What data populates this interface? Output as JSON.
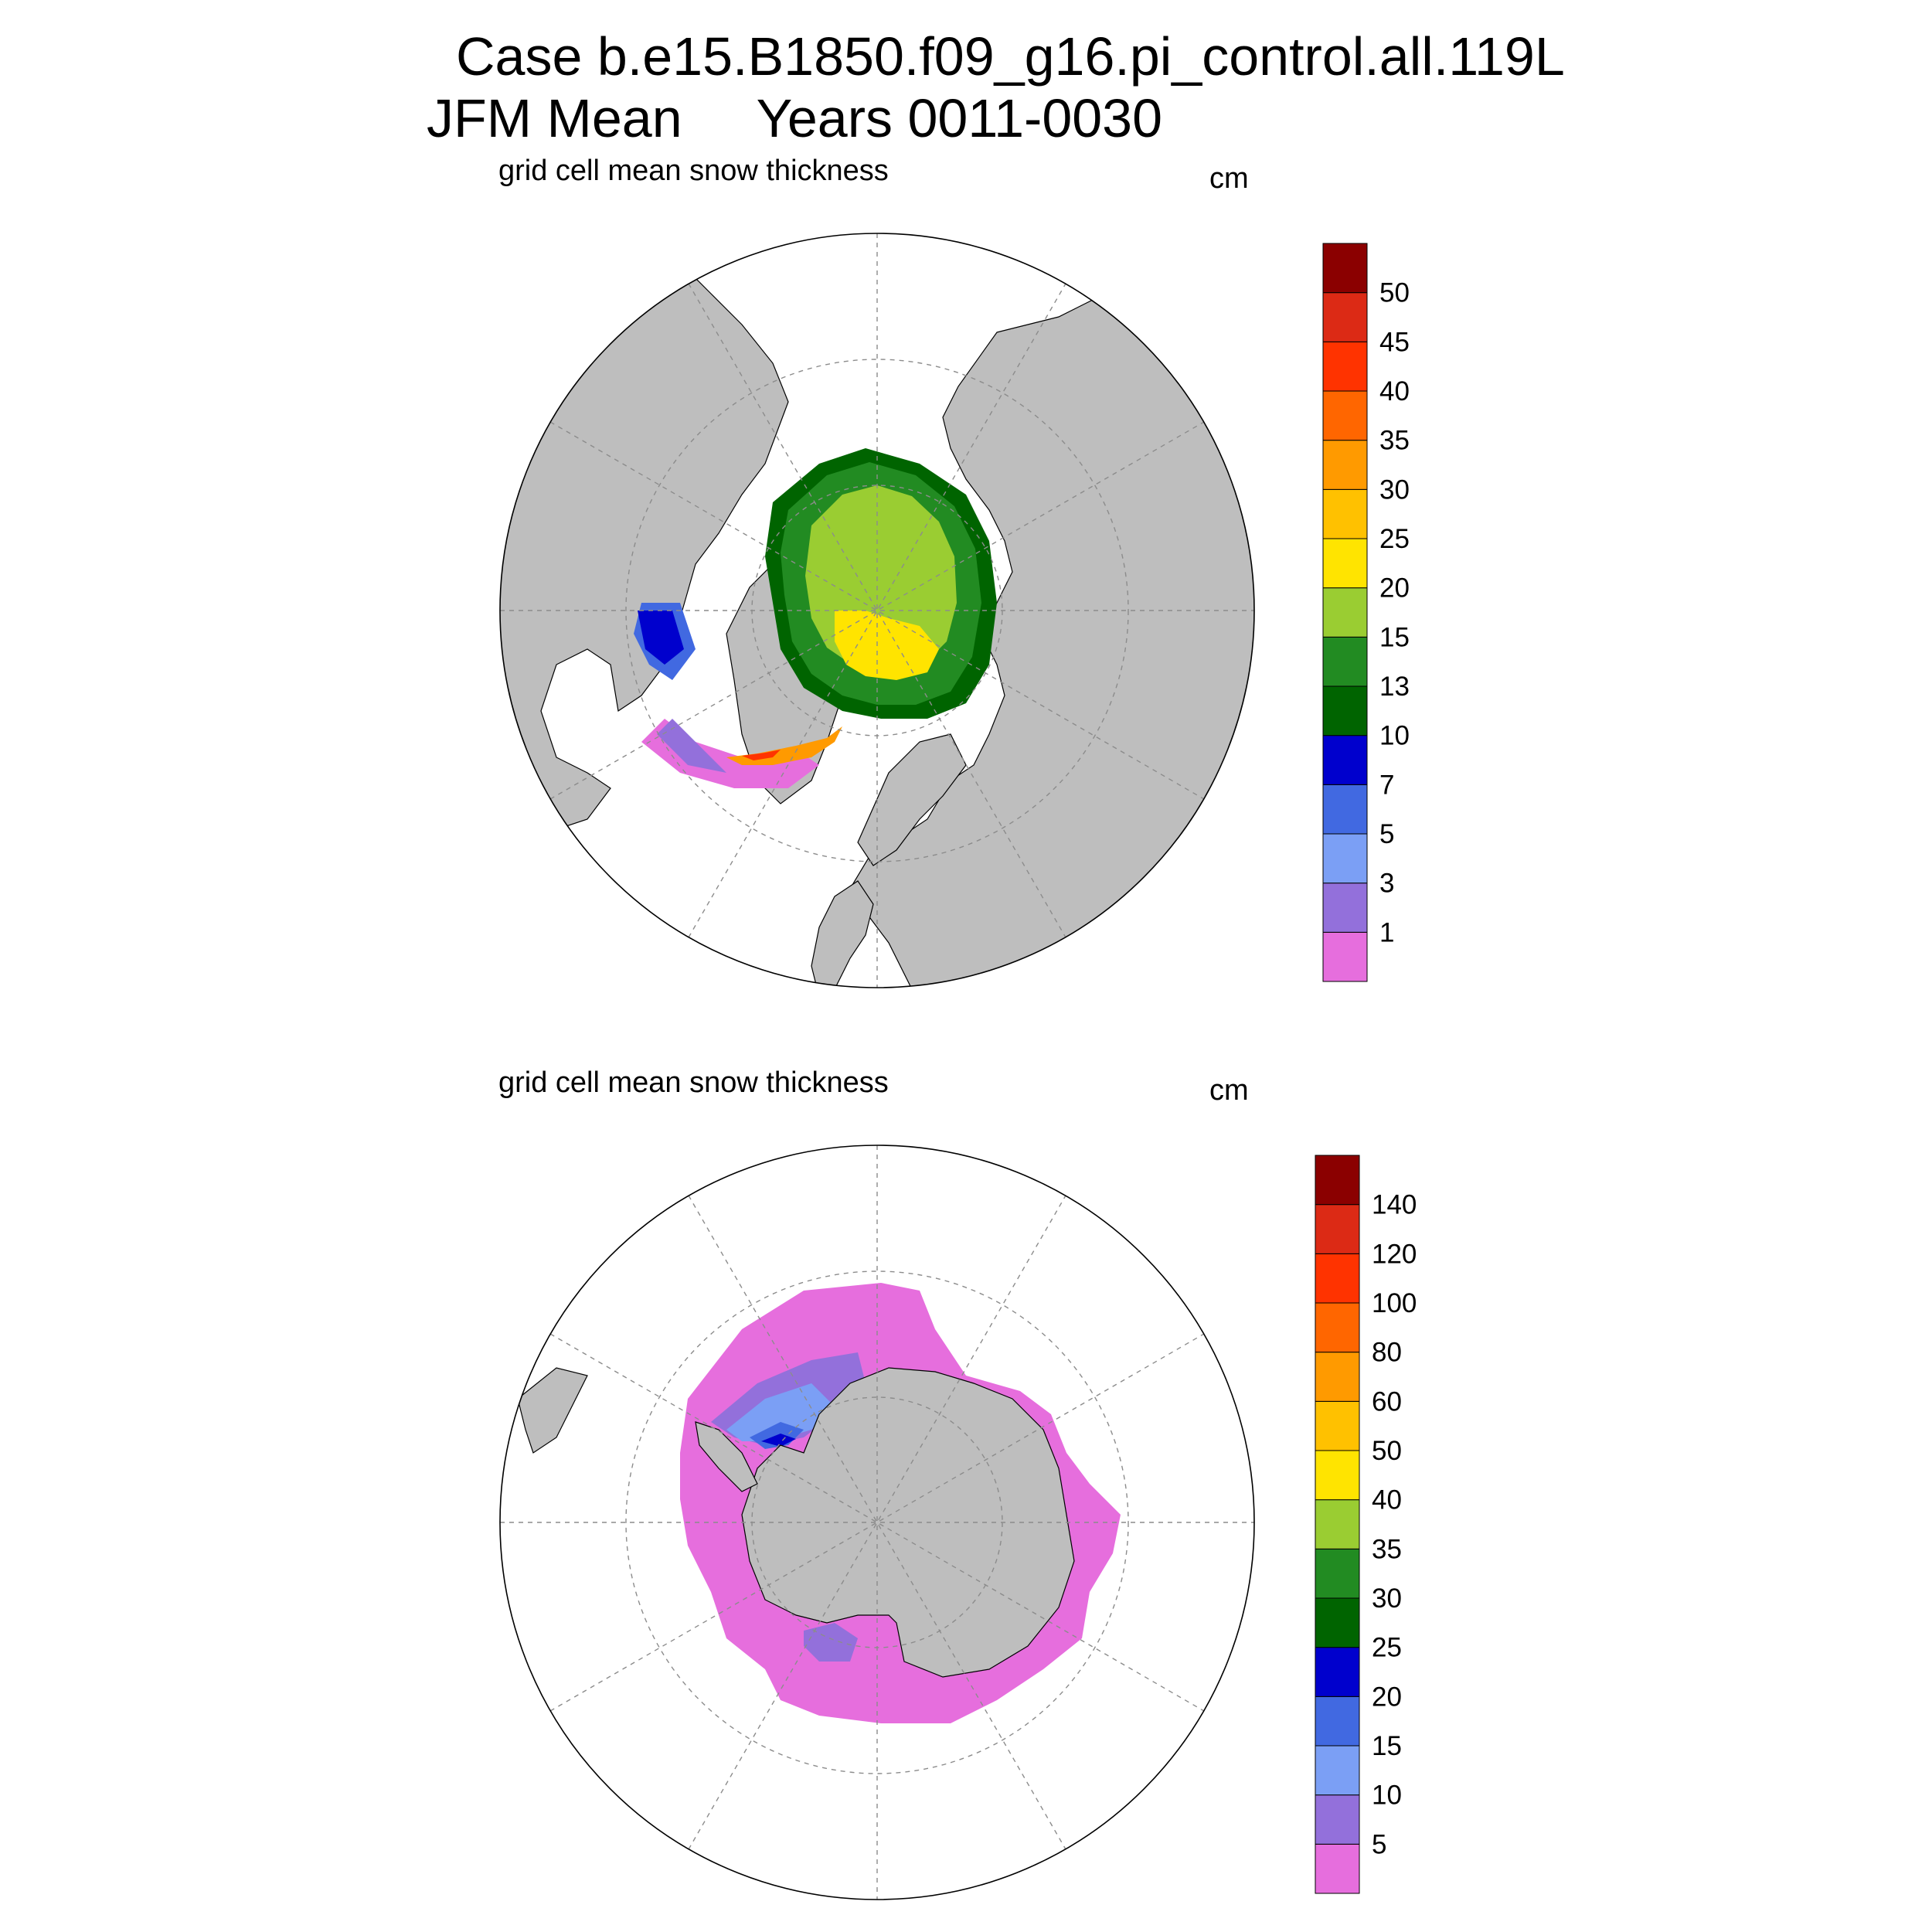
{
  "title_line1": "Case b.e15.B1850.f09_g16.pi_control.all.119L",
  "title_line2": "JFM Mean     Years 0011-0030",
  "colors": {
    "land": "#bebebe",
    "ocean": "#ffffff",
    "grid": "#8c8c8c"
  },
  "chart_data": [
    {
      "type": "heatmap",
      "projection": "polar-stereographic",
      "hemisphere": "north",
      "title": "grid cell mean snow thickness",
      "units": "cm",
      "levels": [
        1,
        3,
        5,
        7,
        10,
        13,
        15,
        20,
        25,
        30,
        35,
        40,
        45,
        50
      ],
      "colors": [
        "#e66edd",
        "#9370db",
        "#7b9ff5",
        "#4169e1",
        "#0000cd",
        "#006400",
        "#228b22",
        "#9acd32",
        "#ffe400",
        "#ffc100",
        "#ff9a00",
        "#ff6600",
        "#ff3300",
        "#dc2a15",
        "#8b0000"
      ]
    },
    {
      "type": "heatmap",
      "projection": "polar-stereographic",
      "hemisphere": "south",
      "title": "grid cell mean snow thickness",
      "units": "cm",
      "levels": [
        5,
        10,
        15,
        20,
        25,
        30,
        35,
        40,
        50,
        60,
        80,
        100,
        120,
        140
      ],
      "colors": [
        "#e66edd",
        "#9370db",
        "#7b9ff5",
        "#4169e1",
        "#0000cd",
        "#006400",
        "#228b22",
        "#9acd32",
        "#ffe400",
        "#ffc100",
        "#ff9a00",
        "#ff6600",
        "#ff3300",
        "#dc2a15",
        "#8b0000"
      ]
    }
  ]
}
